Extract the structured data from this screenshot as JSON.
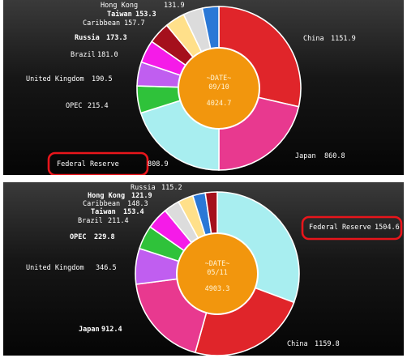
{
  "chart_data": [
    {
      "type": "pie",
      "variant": "donut",
      "center": {
        "label": "~DATE~",
        "date": "09/10",
        "total": "4024.7"
      },
      "highlight": "Federal Reserve",
      "slices": [
        {
          "name": "China",
          "value": 1151.9,
          "display": "1151.9",
          "color": "#e0252a"
        },
        {
          "name": "Japan",
          "value": 860.8,
          "display": "860.8",
          "color": "#e8398f"
        },
        {
          "name": "Federal Reserve",
          "value": 808.9,
          "display": "808.9",
          "color": "#a8eef0"
        },
        {
          "name": "OPEC",
          "value": 215.4,
          "display": "215.4",
          "color": "#2fc23a"
        },
        {
          "name": "United Kingdom",
          "value": 190.5,
          "display": "190.5",
          "color": "#c05ef0"
        },
        {
          "name": "Brazil",
          "value": 181.0,
          "display": "181.0",
          "color": "#f51be8"
        },
        {
          "name": "Russia",
          "value": 173.3,
          "display": "173.3",
          "color": "#a5101c"
        },
        {
          "name": "Caribbean",
          "value": 157.7,
          "display": "157.7",
          "color": "#ffe08a"
        },
        {
          "name": "Taiwan",
          "value": 153.3,
          "display": "153.3",
          "color": "#dcdcdc"
        },
        {
          "name": "Hong Kong",
          "value": 131.9,
          "display": "131.9",
          "color": "#2a78d6"
        }
      ]
    },
    {
      "type": "pie",
      "variant": "donut",
      "center": {
        "label": "~DATE~",
        "date": "05/11",
        "total": "4903.3"
      },
      "highlight": "Federal Reserve",
      "slices": [
        {
          "name": "Federal Reserve",
          "value": 1504.6,
          "display": "1504.6",
          "color": "#a8eef0"
        },
        {
          "name": "China",
          "value": 1159.8,
          "display": "1159.8",
          "color": "#e0252a"
        },
        {
          "name": "Japan",
          "value": 912.4,
          "display": "912.4",
          "color": "#e8398f"
        },
        {
          "name": "United Kingdom",
          "value": 346.5,
          "display": "346.5",
          "color": "#c05ef0"
        },
        {
          "name": "OPEC",
          "value": 229.8,
          "display": "229.8",
          "color": "#2fc23a"
        },
        {
          "name": "Brazil",
          "value": 211.4,
          "display": "211.4",
          "color": "#f51be8"
        },
        {
          "name": "Taiwan",
          "value": 153.4,
          "display": "153.4",
          "color": "#dcdcdc"
        },
        {
          "name": "Caribbean",
          "value": 148.3,
          "display": "148.3",
          "color": "#ffe08a"
        },
        {
          "name": "Hong Kong",
          "value": 121.9,
          "display": "121.9",
          "color": "#2a78d6"
        },
        {
          "name": "Russia",
          "value": 115.2,
          "display": "115.2",
          "color": "#a5101c"
        }
      ]
    }
  ]
}
